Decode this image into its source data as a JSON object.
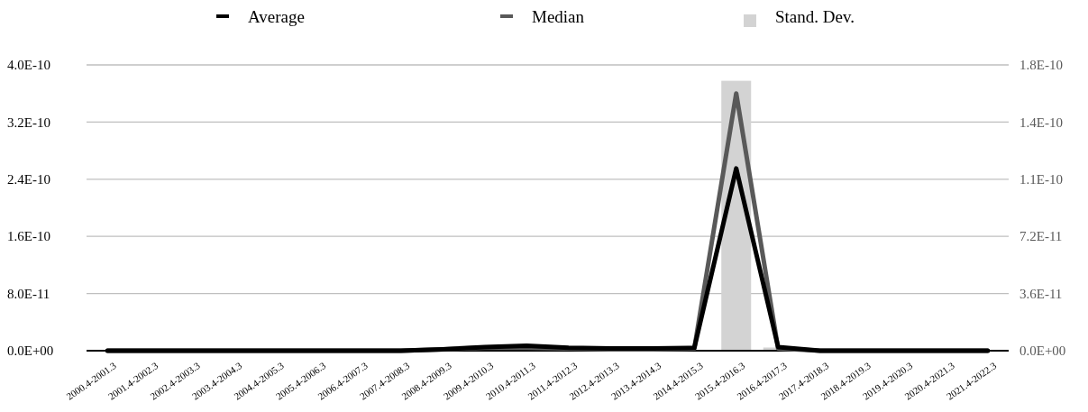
{
  "chart_data": {
    "type": "line",
    "categories": [
      "2000.4-2001.3",
      "2001.4-2002.3",
      "2002.4-2003.3",
      "2003.4-2004.3",
      "2004.4-2005.3",
      "2005.4-2006.3",
      "2006.4-2007.3",
      "2007.4-2008.3",
      "2008.4-2009.3",
      "2009.4-2010.3",
      "2010.4-2011.3",
      "2011.4-2012.3",
      "2012.4-2013.3",
      "2013.4-2014.3",
      "2014.4-2015.3",
      "2015.4-2016.3",
      "2016.4-2017.3",
      "2017.4-2018.3",
      "2018.4-2019.3",
      "2019.4-2020.3",
      "2020.4-2021.3",
      "2021.4-2022.3"
    ],
    "series": [
      {
        "name": "Stand. Dev.",
        "type": "bar",
        "axis": "y2",
        "color": "#d3d3d3",
        "values": [
          0,
          0,
          0,
          0,
          0,
          0,
          0,
          0,
          0,
          0,
          0,
          0,
          0,
          0,
          0,
          1.7e-10,
          2e-12,
          0,
          0,
          0,
          0,
          0
        ]
      },
      {
        "name": "Median",
        "color": "#595959",
        "values": [
          0,
          0,
          0,
          0,
          0,
          0,
          0,
          0,
          2e-12,
          4e-12,
          4e-12,
          3e-12,
          2e-12,
          2e-12,
          3e-12,
          3.6e-10,
          3e-12,
          0,
          0,
          0,
          0,
          0
        ]
      },
      {
        "name": "Average",
        "color": "#000000",
        "values": [
          0,
          0,
          0,
          0,
          0,
          0,
          0,
          0,
          2e-12,
          5e-12,
          7e-12,
          4e-12,
          3e-12,
          3e-12,
          4e-12,
          2.55e-10,
          5e-12,
          0,
          0,
          0,
          0,
          0
        ]
      }
    ],
    "ylim": [
      0,
      4e-10
    ],
    "yticks": [
      {
        "value": 0,
        "label": "0.0E+00"
      },
      {
        "value": 8e-11,
        "label": "8.0E-11"
      },
      {
        "value": 1.6e-10,
        "label": "1.6E-10"
      },
      {
        "value": 2.4e-10,
        "label": "2.4E-10"
      },
      {
        "value": 3.2e-10,
        "label": "3.2E-10"
      },
      {
        "value": 4e-10,
        "label": "4.0E-10"
      }
    ],
    "y2lim": [
      0,
      1.8e-10
    ],
    "y2ticks": [
      {
        "value": 0,
        "label": "0.0E+00"
      },
      {
        "value": 3.6e-11,
        "label": "3.6E-11"
      },
      {
        "value": 7.2e-11,
        "label": "7.2E-11"
      },
      {
        "value": 1.08e-10,
        "label": "1.1E-10"
      },
      {
        "value": 1.44e-10,
        "label": "1.4E-10"
      },
      {
        "value": 1.8e-10,
        "label": "1.8E-10"
      }
    ],
    "grid": "y",
    "legend": "top",
    "marker": "none",
    "line_style": "solid"
  }
}
